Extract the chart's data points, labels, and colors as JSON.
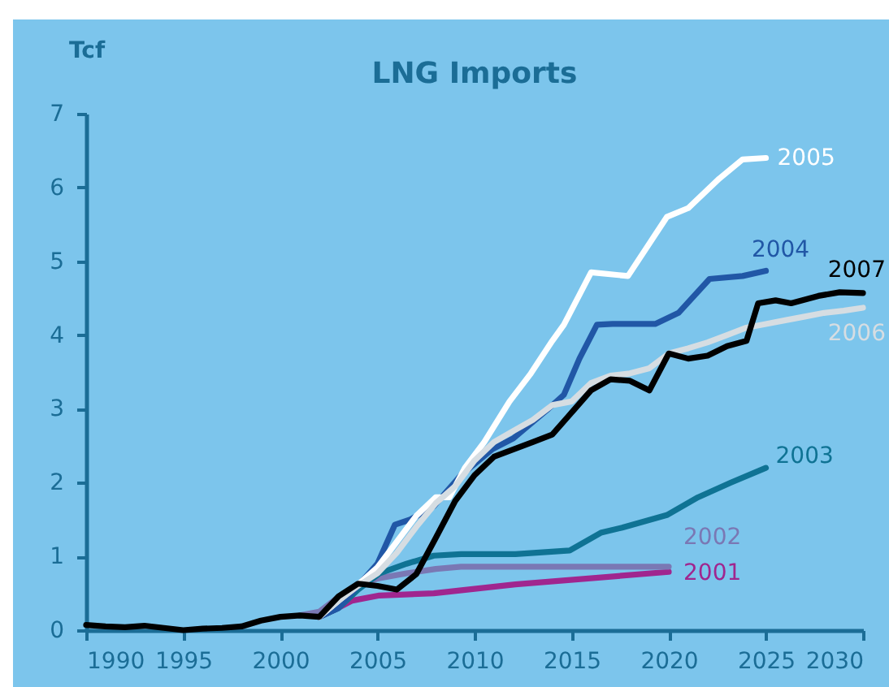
{
  "chart_data": {
    "type": "line",
    "title": "LNG Imports",
    "ylabel": "Tcf",
    "xlim": [
      1990,
      2030
    ],
    "xticks": [
      1990,
      1995,
      2000,
      2005,
      2010,
      2015,
      2020,
      2025,
      2030
    ],
    "ylim": [
      0,
      7
    ],
    "yticks": [
      0,
      1,
      2,
      3,
      4,
      5,
      6,
      7
    ],
    "series": [
      {
        "name": "2001",
        "color": "#a0268f",
        "x": [
          2002,
          2002.9,
          2003.7,
          2005.1,
          2007.9,
          2012.1,
          2020
        ],
        "values": [
          0.18,
          0.29,
          0.4,
          0.47,
          0.5,
          0.62,
          0.79
        ]
      },
      {
        "name": "2002",
        "color": "#7a78b4",
        "x": [
          2001,
          2002,
          2003,
          2004,
          2005,
          2006.5,
          2008,
          2009.3,
          2020
        ],
        "values": [
          0.2,
          0.25,
          0.45,
          0.6,
          0.7,
          0.77,
          0.83,
          0.86,
          0.86
        ]
      },
      {
        "name": "2003",
        "color": "#0f7394",
        "x": [
          2002,
          2003,
          2004,
          2005.1,
          2006.5,
          2007.9,
          2009.3,
          2012.1,
          2014.9,
          2016.5,
          2017.6,
          2019.9,
          2021.5,
          2023.2,
          2025
        ],
        "values": [
          0.18,
          0.3,
          0.55,
          0.77,
          0.9,
          1.01,
          1.03,
          1.03,
          1.08,
          1.32,
          1.39,
          1.56,
          1.8,
          2.0,
          2.2
        ]
      },
      {
        "name": "2004",
        "color": "#2157a6",
        "x": [
          2002,
          2003,
          2004,
          2005,
          2005.9,
          2006.7,
          2007.9,
          2009.3,
          2010.9,
          2012,
          2013.8,
          2014.6,
          2015.4,
          2016.3,
          2017.1,
          2019.3,
          2020.5,
          2022.1,
          2023.8,
          2025
        ],
        "values": [
          0.18,
          0.3,
          0.6,
          0.9,
          1.43,
          1.5,
          1.68,
          2.1,
          2.45,
          2.6,
          3.0,
          3.19,
          3.68,
          4.14,
          4.15,
          4.15,
          4.3,
          4.76,
          4.8,
          4.87
        ]
      },
      {
        "name": "2005",
        "color": "#ffffff",
        "x": [
          2002,
          2003,
          2004,
          2005,
          2006,
          2007,
          2008,
          2008.7,
          2009.5,
          2010.5,
          2011.8,
          2012.9,
          2014,
          2014.6,
          2016,
          2017.9,
          2019.9,
          2021,
          2022.6,
          2023.8,
          2025
        ],
        "values": [
          0.18,
          0.4,
          0.62,
          0.85,
          1.2,
          1.55,
          1.8,
          1.8,
          2.2,
          2.55,
          3.1,
          3.48,
          3.92,
          4.14,
          4.85,
          4.8,
          5.6,
          5.72,
          6.12,
          6.38,
          6.4
        ]
      },
      {
        "name": "2006",
        "color": "#d6dde2",
        "x": [
          2002,
          2003,
          2004,
          2005,
          2006,
          2007,
          2008,
          2009,
          2010,
          2011,
          2012,
          2013,
          2014,
          2015,
          2016,
          2017,
          2018,
          2019,
          2020,
          2021,
          2022,
          2023,
          2024,
          2025,
          2026,
          2027,
          2028,
          2029,
          2030
        ],
        "values": [
          0.18,
          0.4,
          0.6,
          0.77,
          1.05,
          1.4,
          1.72,
          1.95,
          2.3,
          2.55,
          2.7,
          2.85,
          3.05,
          3.1,
          3.35,
          3.45,
          3.48,
          3.55,
          3.75,
          3.82,
          3.9,
          4.0,
          4.1,
          4.15,
          4.2,
          4.25,
          4.3,
          4.33,
          4.37
        ]
      },
      {
        "name": "2007",
        "color": "#000000",
        "x": [
          1990,
          1991,
          1992,
          1993,
          1994,
          1995,
          1996,
          1997,
          1998,
          1999,
          2000,
          2001,
          2002,
          2003,
          2004,
          2005,
          2006,
          2007,
          2008,
          2009,
          2010,
          2011,
          2012,
          2013,
          2014,
          2015,
          2016,
          2017,
          2018,
          2019,
          2020,
          2021,
          2022,
          2023,
          2024,
          2024.6,
          2025.5,
          2026.3,
          2027.7,
          2028.8,
          2030
        ],
        "values": [
          0.07,
          0.05,
          0.04,
          0.06,
          0.03,
          0.0,
          0.02,
          0.03,
          0.05,
          0.13,
          0.18,
          0.2,
          0.18,
          0.46,
          0.63,
          0.6,
          0.55,
          0.76,
          1.25,
          1.75,
          2.1,
          2.35,
          2.45,
          2.55,
          2.65,
          2.95,
          3.25,
          3.4,
          3.38,
          3.25,
          3.75,
          3.68,
          3.72,
          3.85,
          3.92,
          4.43,
          4.47,
          4.43,
          4.53,
          4.58,
          4.57
        ]
      }
    ]
  }
}
